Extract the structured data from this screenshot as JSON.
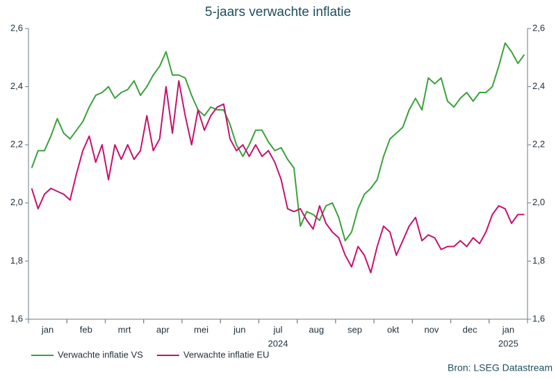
{
  "chart_data": {
    "type": "line",
    "title": "5-jaars verwachte inflatie",
    "source": "Bron: LSEG Datastream",
    "categories": [
      null,
      null,
      null,
      "jan",
      null,
      null,
      null,
      null,
      null,
      "feb",
      null,
      null,
      null,
      null,
      null,
      "mrt",
      null,
      null,
      null,
      null,
      null,
      "apr",
      null,
      null,
      null,
      null,
      null,
      "mei",
      null,
      null,
      null,
      null,
      null,
      "jun",
      null,
      null,
      null,
      null,
      null,
      "jul",
      null,
      null,
      null,
      null,
      null,
      "aug",
      null,
      null,
      null,
      null,
      null,
      "sep",
      null,
      null,
      null,
      null,
      null,
      "okt",
      null,
      null,
      null,
      null,
      null,
      "nov",
      null,
      null,
      null,
      null,
      null,
      "dec",
      null,
      null,
      null,
      null,
      null,
      "jan",
      null,
      null
    ],
    "category_years": [
      null,
      null,
      null,
      null,
      null,
      null,
      null,
      null,
      null,
      null,
      null,
      null,
      null,
      null,
      null,
      null,
      null,
      null,
      null,
      null,
      null,
      null,
      null,
      null,
      null,
      null,
      null,
      null,
      null,
      null,
      null,
      null,
      null,
      null,
      null,
      null,
      null,
      null,
      null,
      "2024",
      null,
      null,
      null,
      null,
      null,
      null,
      null,
      null,
      null,
      null,
      null,
      null,
      null,
      null,
      null,
      null,
      null,
      null,
      null,
      null,
      null,
      null,
      null,
      null,
      null,
      null,
      null,
      null,
      null,
      null,
      null,
      null,
      null,
      null,
      null,
      "2025",
      null,
      null
    ],
    "series": [
      {
        "name": "Verwachte inflatie VS",
        "color": "#3aa13a",
        "values": [
          2.12,
          2.18,
          2.18,
          2.23,
          2.29,
          2.24,
          2.22,
          2.25,
          2.28,
          2.33,
          2.37,
          2.38,
          2.4,
          2.36,
          2.38,
          2.39,
          2.42,
          2.37,
          2.4,
          2.44,
          2.47,
          2.52,
          2.44,
          2.44,
          2.43,
          2.37,
          2.32,
          2.3,
          2.33,
          2.32,
          2.32,
          2.27,
          2.2,
          2.16,
          2.2,
          2.25,
          2.25,
          2.21,
          2.18,
          2.19,
          2.15,
          2.12,
          1.92,
          1.97,
          1.96,
          1.94,
          1.99,
          2.0,
          1.95,
          1.87,
          1.9,
          1.98,
          2.03,
          2.05,
          2.08,
          2.16,
          2.22,
          2.24,
          2.26,
          2.32,
          2.36,
          2.32,
          2.43,
          2.41,
          2.43,
          2.35,
          2.33,
          2.36,
          2.38,
          2.35,
          2.38,
          2.38,
          2.4,
          2.47,
          2.55,
          2.52,
          2.48,
          2.51
        ]
      },
      {
        "name": "Verwachte inflatie EU",
        "color": "#c8106e",
        "values": [
          2.05,
          1.98,
          2.03,
          2.05,
          2.04,
          2.03,
          2.01,
          2.1,
          2.18,
          2.23,
          2.14,
          2.2,
          2.08,
          2.2,
          2.15,
          2.2,
          2.15,
          2.18,
          2.3,
          2.18,
          2.22,
          2.4,
          2.24,
          2.42,
          2.3,
          2.2,
          2.32,
          2.25,
          2.3,
          2.33,
          2.34,
          2.22,
          2.18,
          2.2,
          2.16,
          2.2,
          2.16,
          2.18,
          2.14,
          2.08,
          1.98,
          1.97,
          1.98,
          1.94,
          1.91,
          1.99,
          1.93,
          1.9,
          1.88,
          1.82,
          1.78,
          1.85,
          1.82,
          1.76,
          1.85,
          1.92,
          1.9,
          1.82,
          1.87,
          1.92,
          1.95,
          1.87,
          1.89,
          1.88,
          1.84,
          1.85,
          1.85,
          1.87,
          1.85,
          1.88,
          1.86,
          1.9,
          1.96,
          1.99,
          1.98,
          1.93,
          1.96,
          1.96
        ]
      }
    ],
    "ylim": [
      1.6,
      2.6
    ],
    "yticks": [
      {
        "value": 1.6,
        "label": "1,6"
      },
      {
        "value": 1.8,
        "label": "1,8"
      },
      {
        "value": 2.0,
        "label": "2,0"
      },
      {
        "value": 2.2,
        "label": "2,2"
      },
      {
        "value": 2.4,
        "label": "2,4"
      },
      {
        "value": 2.6,
        "label": "2,6"
      }
    ],
    "y2lim": [
      1.6,
      2.6
    ],
    "y2ticks": [
      {
        "value": 1.6,
        "label": "1,6"
      },
      {
        "value": 1.8,
        "label": "1,8"
      },
      {
        "value": 2.0,
        "label": "2,0"
      },
      {
        "value": 2.2,
        "label": "2,2"
      },
      {
        "value": 2.4,
        "label": "2,4"
      },
      {
        "value": 2.6,
        "label": "2,6"
      }
    ],
    "grid": false,
    "legend": "bottom-left"
  }
}
